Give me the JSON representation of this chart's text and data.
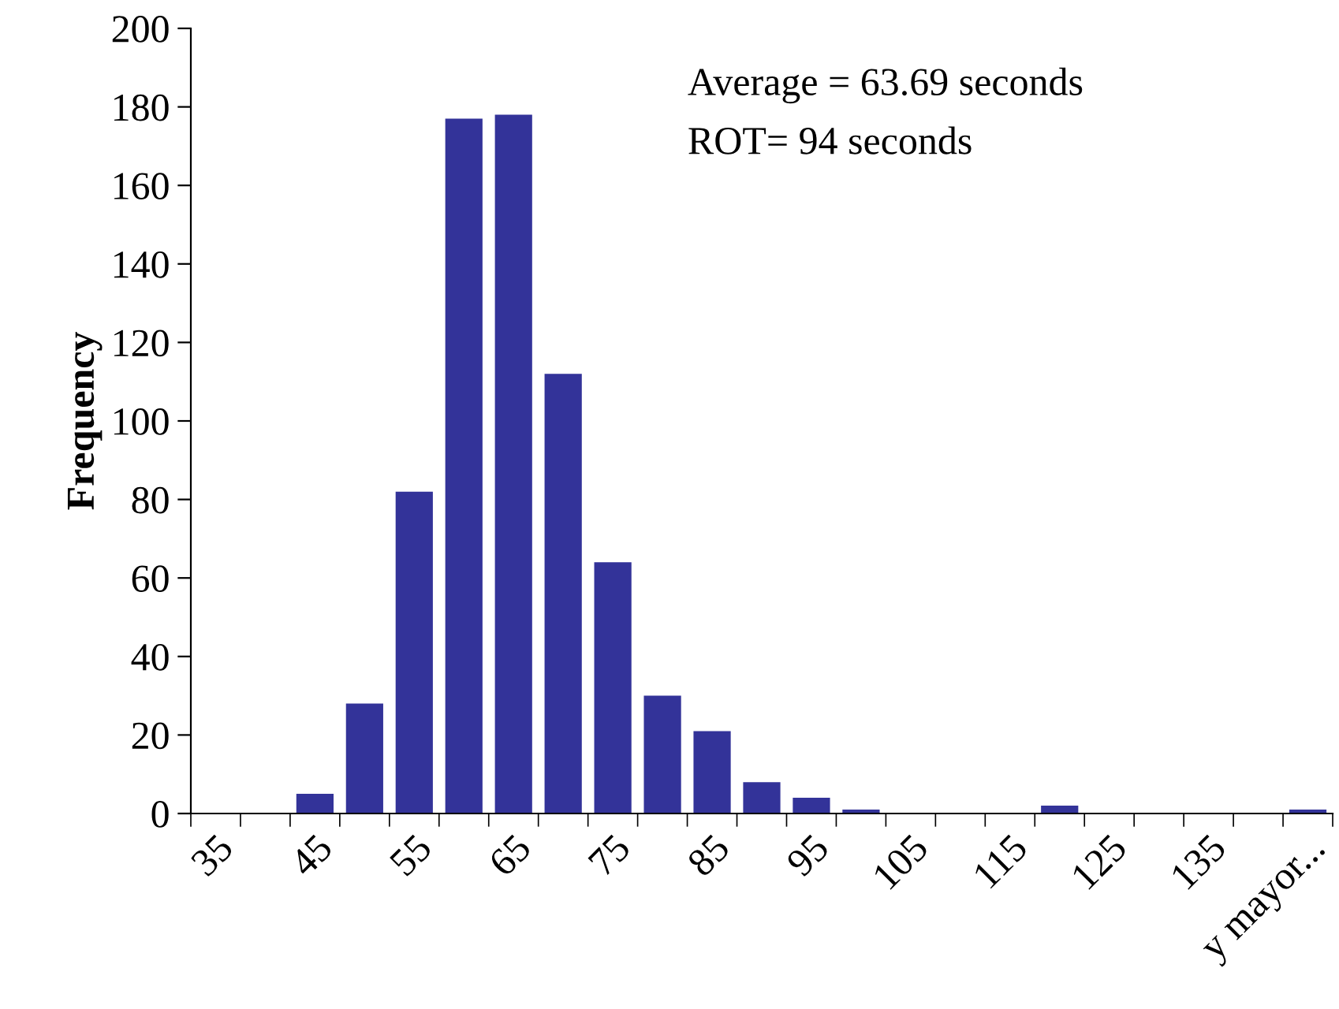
{
  "chart_data": {
    "type": "bar",
    "ylabel": "Frequency",
    "categories": [
      "35",
      null,
      "45",
      null,
      "55",
      null,
      "65",
      null,
      "75",
      null,
      "85",
      null,
      "95",
      null,
      "105",
      null,
      "115",
      null,
      "125",
      null,
      "135",
      null,
      "y mayor..."
    ],
    "values": [
      0,
      0,
      5,
      28,
      82,
      177,
      178,
      112,
      64,
      30,
      21,
      8,
      4,
      1,
      0,
      0,
      0,
      2,
      0,
      0,
      0,
      0,
      1
    ],
    "color": "#333399",
    "ylim": [
      0,
      200
    ],
    "yticks": [
      0,
      20,
      40,
      60,
      80,
      100,
      120,
      140,
      160,
      180,
      200
    ],
    "annotations": [
      "Average = 63.69 seconds",
      "ROT= 94 seconds"
    ],
    "grid": false
  }
}
